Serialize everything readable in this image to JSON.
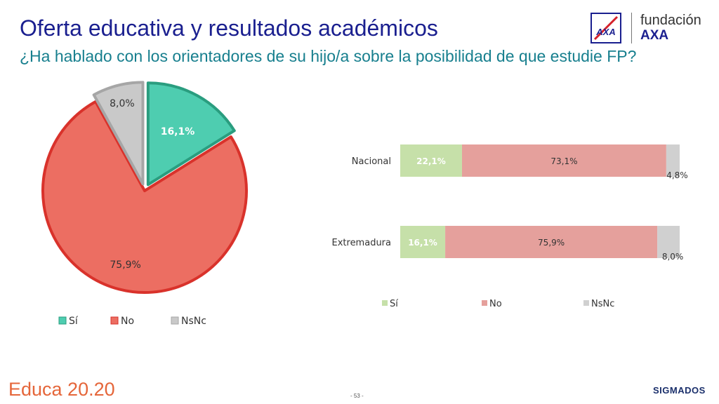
{
  "header": {
    "title": "Oferta educativa y resultados académicos",
    "subtitle": "¿Ha hablado con los orientadores de su hijo/a sobre la posibilidad de que estudie FP?"
  },
  "logo": {
    "fundacion_text": "fundación",
    "axa_text": "AXA",
    "mark_text": "AXA"
  },
  "footer": {
    "educa": "Educa 20.20",
    "page": "- 53 -",
    "sigmados": "SIGMADOS"
  },
  "colors": {
    "si_pie": "#4ecdb0",
    "si_pie_border": "#2a9d7f",
    "no_pie": "#ec6e62",
    "no_pie_border": "#d9322b",
    "nsnc_pie": "#c9c9c9",
    "nsnc_pie_border": "#a6a6a6",
    "si_bar": "#c6e0a9",
    "no_bar": "#e5a09c",
    "nsnc_bar": "#d0d0d0"
  },
  "chart_data": [
    {
      "type": "pie",
      "slices": [
        {
          "label": "Sí",
          "value": 16.1,
          "display": "16,1%",
          "exploded": true
        },
        {
          "label": "No",
          "value": 75.9,
          "display": "75,9%",
          "exploded": false
        },
        {
          "label": "NsNc",
          "value": 8.0,
          "display": "8,0%",
          "exploded": true
        }
      ],
      "legend": [
        "Sí",
        "No",
        "NsNc"
      ],
      "legend_position": "bottom"
    },
    {
      "type": "bar",
      "orientation": "horizontal",
      "stacked": true,
      "percent": true,
      "categories": [
        "Nacional",
        "Extremadura"
      ],
      "series": [
        {
          "name": "Sí",
          "values": [
            22.1,
            16.1
          ],
          "labels": [
            "22,1%",
            "16,1%"
          ]
        },
        {
          "name": "No",
          "values": [
            73.1,
            75.9
          ],
          "labels": [
            "73,1%",
            "75,9%"
          ]
        },
        {
          "name": "NsNc",
          "values": [
            4.8,
            8.0
          ],
          "labels": [
            "4,8%",
            "8,0%"
          ]
        }
      ],
      "legend_position": "bottom",
      "xlim": [
        0,
        100
      ]
    }
  ]
}
